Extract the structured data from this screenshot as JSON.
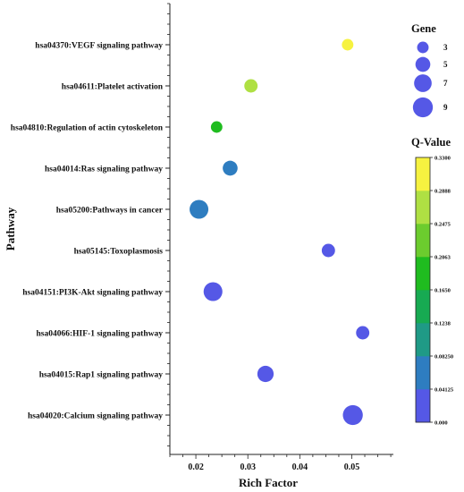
{
  "chart_data": {
    "type": "scatter",
    "subtype": "bubble",
    "xlabel": "Rich Factor",
    "ylabel": "Pathway",
    "xlim": [
      0.015,
      0.058
    ],
    "x_ticks": [
      0.02,
      0.03,
      0.04,
      0.05
    ],
    "x_tick_labels": [
      "0.02",
      "0.03",
      "0.04",
      "0.05"
    ],
    "categories": [
      "hsa04370:VEGF signaling pathway",
      "hsa04611:Platelet activation",
      "hsa04810:Regulation of actin cytoskeleton",
      "hsa04014:Ras signaling pathway",
      "hsa05200:Pathways in cancer",
      "hsa05145:Toxoplasmosis",
      "hsa04151:PI3K-Akt signaling pathway",
      "hsa04066:HIF-1 signaling pathway",
      "hsa04015:Rap1 signaling pathway",
      "hsa04020:Calcium signaling pathway"
    ],
    "points": [
      {
        "pathway": "hsa04370:VEGF signaling pathway",
        "rich_factor": 0.0492,
        "gene": 3,
        "q_value": 0.32
      },
      {
        "pathway": "hsa04611:Platelet activation",
        "rich_factor": 0.0306,
        "gene": 4,
        "q_value": 0.27
      },
      {
        "pathway": "hsa04810:Regulation of actin cytoskeleton",
        "rich_factor": 0.024,
        "gene": 3,
        "q_value": 0.2
      },
      {
        "pathway": "hsa04014:Ras signaling pathway",
        "rich_factor": 0.0266,
        "gene": 5,
        "q_value": 0.07
      },
      {
        "pathway": "hsa05200:Pathways in cancer",
        "rich_factor": 0.0206,
        "gene": 8,
        "q_value": 0.065
      },
      {
        "pathway": "hsa05145:Toxoplasmosis",
        "rich_factor": 0.0455,
        "gene": 4,
        "q_value": 0.01
      },
      {
        "pathway": "hsa04151:PI3K-Akt signaling pathway",
        "rich_factor": 0.0233,
        "gene": 8,
        "q_value": 0.01
      },
      {
        "pathway": "hsa04066:HIF-1 signaling pathway",
        "rich_factor": 0.0521,
        "gene": 4,
        "q_value": 0.005
      },
      {
        "pathway": "hsa04015:Rap1 signaling pathway",
        "rich_factor": 0.0334,
        "gene": 6,
        "q_value": 0.005
      },
      {
        "pathway": "hsa04020:Calcium signaling pathway",
        "rich_factor": 0.0502,
        "gene": 9,
        "q_value": 0.002
      }
    ],
    "size_legend": {
      "title": "Gene",
      "values": [
        3,
        5,
        7,
        9
      ],
      "labels": [
        "3",
        "5",
        "7",
        "9"
      ],
      "color": "#5558e6"
    },
    "color_legend": {
      "title": "Q-Value",
      "tick_labels": [
        "0.3300",
        "0.2888",
        "0.2475",
        "0.2063",
        "0.1650",
        "0.1238",
        "0.08250",
        "0.04125",
        "0.000"
      ],
      "bands": [
        {
          "from": 0.0,
          "to": 0.04125,
          "color": "#5558e6"
        },
        {
          "from": 0.04125,
          "to": 0.0825,
          "color": "#2e7dc0"
        },
        {
          "from": 0.0825,
          "to": 0.1238,
          "color": "#1f9a86"
        },
        {
          "from": 0.1238,
          "to": 0.165,
          "color": "#17aa52"
        },
        {
          "from": 0.165,
          "to": 0.2063,
          "color": "#1fbc1f"
        },
        {
          "from": 0.2063,
          "to": 0.2475,
          "color": "#6ccc2e"
        },
        {
          "from": 0.2475,
          "to": 0.2888,
          "color": "#afe043"
        },
        {
          "from": 0.2888,
          "to": 0.33,
          "color": "#f6f240"
        }
      ]
    }
  }
}
